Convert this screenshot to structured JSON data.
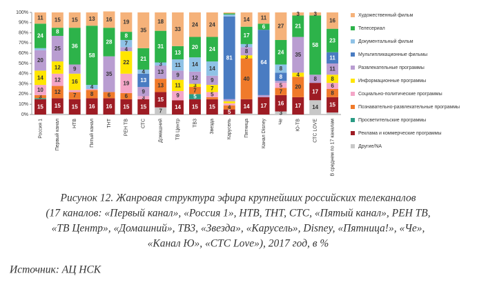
{
  "chart_data": {
    "type": "stacked_bar",
    "categories": [
      "Россия 1",
      "Первый канал",
      "НТВ",
      "Пятый канал",
      "ТНТ",
      "РЕН ТВ",
      "СТС",
      "Домашний",
      "ТВ Центр",
      "ТВ3",
      "Звезда",
      "Карусель",
      "Пятница",
      "Канал Disney",
      "Че",
      "Ю-ТВ",
      "СТС LOVE",
      "В среднем по 17 каналам"
    ],
    "series": [
      {
        "name": "Другие/NA",
        "color": "#c8c8c8",
        "values": [
          0,
          1,
          0,
          0,
          0,
          0,
          0,
          7,
          0,
          0,
          0,
          0,
          1,
          0,
          3,
          0,
          14,
          2
        ]
      },
      {
        "name": "Реклама и коммерческие программы",
        "color": "#9e1c24",
        "values": [
          15,
          15,
          15,
          16,
          16,
          15,
          15,
          15,
          14,
          15,
          15,
          5,
          14,
          17,
          16,
          17,
          17,
          15
        ]
      },
      {
        "name": "Просветительские программы",
        "color": "#2a9b84",
        "values": [
          1,
          0,
          0,
          0,
          0,
          0,
          0,
          0,
          0,
          5,
          0,
          0,
          0,
          0,
          0,
          0,
          0,
          0
        ]
      },
      {
        "name": "Познавательно-развлекательные программы",
        "color": "#f07a2a",
        "values": [
          3,
          12,
          7,
          8,
          6,
          6,
          0,
          13,
          0,
          7,
          2,
          4,
          40,
          0,
          7,
          20,
          0,
          8
        ]
      },
      {
        "name": "Социально-политические программы",
        "color": "#f4a6c8",
        "values": [
          10,
          12,
          2,
          1,
          0,
          19,
          3,
          0,
          9,
          0,
          5,
          2,
          0,
          0,
          5,
          0,
          0,
          6
        ]
      },
      {
        "name": "Информационные программы",
        "color": "#ffe600",
        "values": [
          14,
          12,
          16,
          0,
          0,
          22,
          0,
          0,
          11,
          3,
          7,
          2,
          3,
          0,
          0,
          4,
          0,
          8
        ]
      },
      {
        "name": "Развлекательные программы",
        "color": "#b99dd1",
        "values": [
          20,
          25,
          9,
          0,
          35,
          4,
          9,
          13,
          9,
          12,
          9,
          2,
          8,
          2,
          2,
          35,
          8,
          11
        ]
      },
      {
        "name": "Мультипликационные фильмы",
        "color": "#4a7cc2",
        "values": [
          0,
          0,
          0,
          0,
          0,
          0,
          13,
          0,
          0,
          0,
          0,
          81,
          0,
          64,
          8,
          0,
          0,
          11
        ]
      },
      {
        "name": "Документальный фильм",
        "color": "#8fc2e6",
        "values": [
          2,
          0,
          0,
          4,
          0,
          7,
          4,
          3,
          11,
          14,
          14,
          2,
          3,
          0,
          8,
          0,
          0,
          0
        ]
      },
      {
        "name": "Телесериал",
        "color": "#2db34a",
        "values": [
          24,
          8,
          36,
          58,
          28,
          8,
          21,
          31,
          13,
          20,
          24,
          1,
          17,
          6,
          24,
          21,
          58,
          23
        ]
      },
      {
        "name": "Художественный фильм",
        "color": "#f5b27a",
        "values": [
          11,
          15,
          15,
          13,
          16,
          19,
          35,
          18,
          33,
          24,
          24,
          1,
          14,
          11,
          27,
          3,
          3,
          16
        ]
      }
    ],
    "ylim": [
      0,
      100
    ],
    "yticks": [
      {
        "value": 0,
        "label": "0%"
      },
      {
        "value": 10,
        "label": "10%"
      },
      {
        "value": 20,
        "label": "20%"
      },
      {
        "value": 30,
        "label": "30%"
      },
      {
        "value": 40,
        "label": "40%"
      },
      {
        "value": 50,
        "label": "50%"
      },
      {
        "value": 60,
        "label": "60%"
      },
      {
        "value": 70,
        "label": "70%"
      },
      {
        "value": 80,
        "label": "80%"
      },
      {
        "value": 90,
        "label": "90%"
      },
      {
        "value": 100,
        "label": "100%"
      }
    ],
    "legend": "right"
  },
  "caption": [
    "Рисунок 12. Жанровая структура эфира крупнейших российских телеканалов",
    "(17 каналов: «Первый канал», «Россия 1», НТВ, ТНТ, СТС, «Пятый канал», РЕН ТВ,",
    "«ТВ Центр», «Домашний», ТВ3, «Звезда», «Карусель», Disney, «Пятница!», «Че»,",
    "«Канал Ю», «СТС Love»), 2017 год, в %"
  ],
  "source": "Источник: АЦ НСК"
}
